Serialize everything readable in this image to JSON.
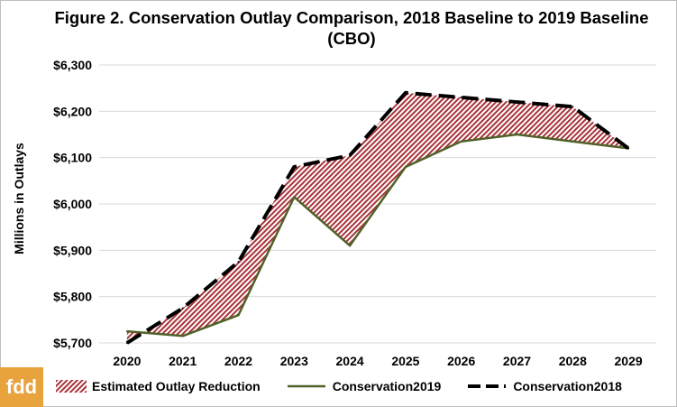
{
  "chart_data": {
    "type": "area",
    "title": "Figure 2. Conservation Outlay Comparison, 2018 Baseline to 2019 Baseline (CBO)",
    "xlabel": "",
    "ylabel": "Millions in Outlays",
    "categories": [
      "2020",
      "2021",
      "2022",
      "2023",
      "2024",
      "2025",
      "2026",
      "2027",
      "2028",
      "2029"
    ],
    "ylim": [
      5700,
      6300
    ],
    "yticks": [
      "$5,700",
      "$5,800",
      "$5,900",
      "$6,000",
      "$6,100",
      "$6,200",
      "$6,300"
    ],
    "series": [
      {
        "name": "Estimated Outlay Reduction",
        "kind": "hatched-area-between",
        "color": "#c0504d"
      },
      {
        "name": "Conservation2019",
        "kind": "line",
        "color": "#4f6228",
        "values": [
          5725,
          5715,
          5760,
          6015,
          5910,
          6080,
          6135,
          6150,
          6135,
          6120
        ]
      },
      {
        "name": "Conservation2018",
        "kind": "dashed-line",
        "color": "#000000",
        "values": [
          5700,
          5775,
          5875,
          6080,
          6105,
          6240,
          6230,
          6220,
          6210,
          6120
        ]
      }
    ],
    "grid": "horizontal",
    "legend": "bottom"
  },
  "logo_text": "fdd"
}
